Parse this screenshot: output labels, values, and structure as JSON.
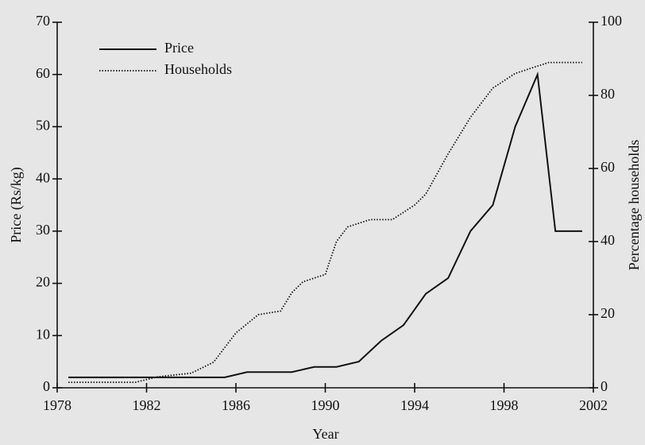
{
  "chart_data": {
    "type": "line",
    "xlabel": "Year",
    "ylabel": "Price (Rs/kg)",
    "y2label": "Percentage households",
    "xlim": [
      1978,
      2002
    ],
    "xticks": [
      1978,
      1982,
      1986,
      1990,
      1994,
      1998,
      2002
    ],
    "ylim": [
      0,
      70
    ],
    "yticks": [
      0,
      10,
      20,
      30,
      40,
      50,
      60,
      70
    ],
    "y2lim": [
      0,
      100
    ],
    "y2ticks": [
      0,
      20,
      40,
      60,
      80,
      100
    ],
    "legend": "upper left",
    "series": [
      {
        "name": "Price",
        "color": "#111111",
        "dash": "solid",
        "x": [
          1978.5,
          1985.5,
          1986.5,
          1988.5,
          1989.5,
          1990.5,
          1991.5,
          1992.5,
          1993.5,
          1994.5,
          1995.5,
          1996.5,
          1997.5,
          1998.5,
          1999.5,
          2000.3,
          2001.5
        ],
        "values": [
          2,
          2,
          3,
          3,
          4,
          4,
          5,
          9,
          12,
          18,
          21,
          30,
          35,
          50,
          60,
          30,
          30
        ]
      },
      {
        "name": "Households",
        "color": "#111111",
        "dash": "dotted",
        "axis": "y2",
        "x": [
          1978.5,
          1981.5,
          1982.5,
          1984,
          1985,
          1986,
          1987,
          1988,
          1988.5,
          1989,
          1990,
          1990.5,
          1991,
          1992,
          1993,
          1994,
          1994.5,
          1995.5,
          1996.5,
          1997.5,
          1998.5,
          1999.5,
          2000,
          2001.5
        ],
        "values": [
          1.5,
          1.5,
          3,
          4,
          7,
          15,
          20,
          21,
          26,
          29,
          31,
          40,
          44,
          46,
          46,
          50,
          53,
          64,
          74,
          82,
          86,
          88,
          89,
          89
        ]
      }
    ]
  }
}
